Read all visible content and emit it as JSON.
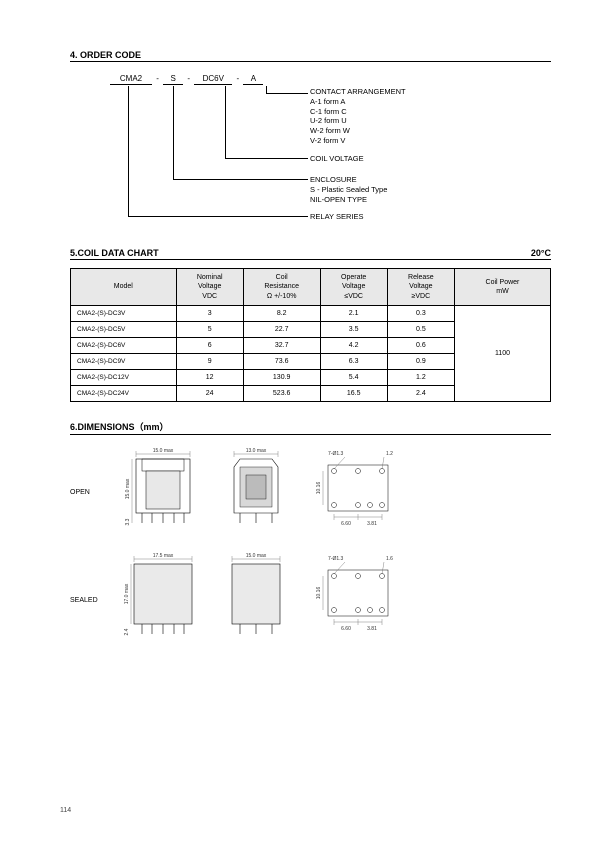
{
  "section4": {
    "title": "4. ORDER CODE",
    "codes": [
      "CMA2",
      "S",
      "DC6V",
      "A"
    ],
    "dashes": [
      "-",
      "-",
      "-"
    ],
    "labels": {
      "contact": "CONTACT ARRANGEMENT",
      "contact_lines": [
        "A-1 form A",
        "C-1 form C",
        "U-2 form U",
        "W-2 form W",
        "V-2 form V"
      ],
      "coil": "COIL VOLTAGE",
      "enclosure": "ENCLOSURE",
      "enclosure_lines": [
        "S - Plastic Sealed Type",
        "NIL-OPEN TYPE"
      ],
      "series": "RELAY SERIES"
    }
  },
  "section5": {
    "title": "5.COIL DATA CHART",
    "right": "20°C",
    "headers": [
      "Model",
      "Nominal\nVoltage\nVDC",
      "Coil\nResistance\nΩ +/-10%",
      "Operate\nVoltage\n≤VDC",
      "Release\nVoltage\n≥VDC",
      "Coil Power\nmW"
    ],
    "rows": [
      {
        "model": "CMA2-(S)-DC3V",
        "nom": "3",
        "res": "8.2",
        "op": "2.1",
        "rel": "0.3"
      },
      {
        "model": "CMA2-(S)-DC5V",
        "nom": "5",
        "res": "22.7",
        "op": "3.5",
        "rel": "0.5"
      },
      {
        "model": "CMA2-(S)-DC6V",
        "nom": "6",
        "res": "32.7",
        "op": "4.2",
        "rel": "0.6"
      },
      {
        "model": "CMA2-(S)-DC9V",
        "nom": "9",
        "res": "73.6",
        "op": "6.3",
        "rel": "0.9"
      },
      {
        "model": "CMA2-(S)-DC12V",
        "nom": "12",
        "res": "130.9",
        "op": "5.4",
        "rel": "1.2"
      },
      {
        "model": "CMA2-(S)-DC24V",
        "nom": "24",
        "res": "523.6",
        "op": "16.5",
        "rel": "2.4"
      }
    ],
    "power": "1100"
  },
  "section6": {
    "title": "6.DIMENSIONS（mm）",
    "open_label": "OPEN",
    "sealed_label": "SEALED",
    "open": {
      "w": "15.0 max",
      "h": "15.0 max",
      "side_w": "13.0 max",
      "pin_h": "3.3",
      "pcb_hole": "7-Ø1.3",
      "pcb_dim1": "1.2",
      "pcb_v": "10.16",
      "pcb_h1": "6.60",
      "pcb_h2": "3.81"
    },
    "sealed": {
      "w": "17.5 max",
      "h": "17.0 max",
      "side_w": "15.0 max",
      "pin_h": "2.4",
      "pcb_hole": "7-Ø1.3",
      "pcb_dim1": "1.6",
      "pcb_v": "10.16",
      "pcb_h1": "6.60",
      "pcb_h2": "3.81"
    }
  },
  "page_number": "114",
  "colors": {
    "header_bg": "#e8e8e8",
    "line": "#000000",
    "dim_line": "#666666"
  }
}
